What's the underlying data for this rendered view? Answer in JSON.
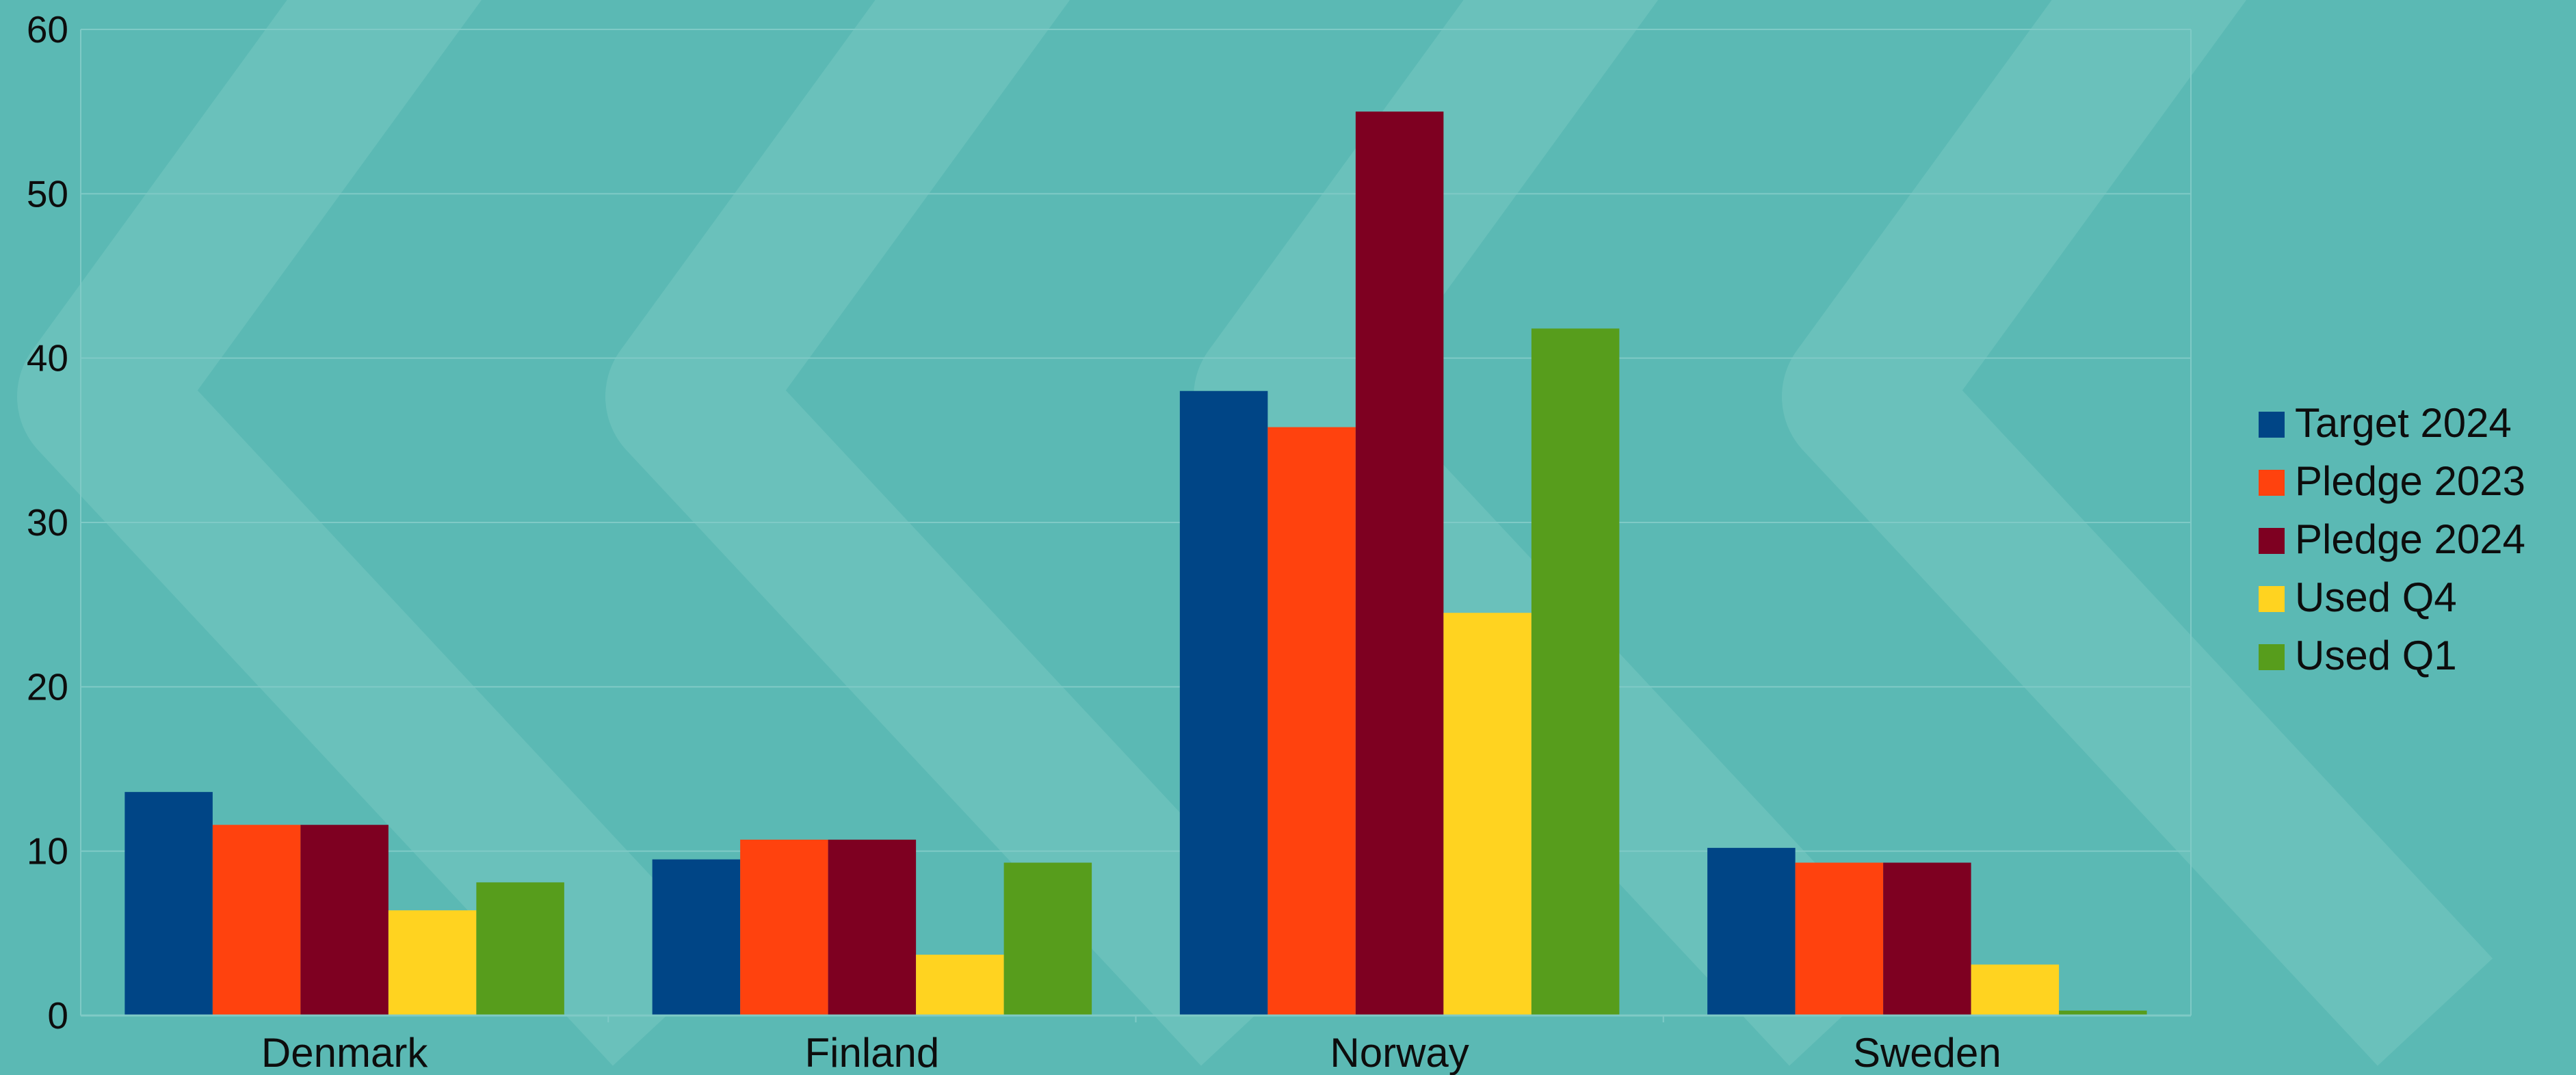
{
  "chart_data": {
    "type": "bar",
    "title": "",
    "xlabel": "",
    "ylabel": "",
    "ylim": [
      0,
      60
    ],
    "yticks": [
      0,
      10,
      20,
      30,
      40,
      50,
      60
    ],
    "grid": true,
    "legend_position": "right",
    "categories": [
      "Denmark",
      "Finland",
      "Norway",
      "Sweden"
    ],
    "series": [
      {
        "name": "Target 2024",
        "color": "#004586",
        "values": [
          13.6,
          9.5,
          38.0,
          10.2
        ]
      },
      {
        "name": "Pledge 2023",
        "color": "#ff420e",
        "values": [
          11.6,
          10.7,
          35.8,
          9.3
        ]
      },
      {
        "name": "Pledge 2024",
        "color": "#7e0021",
        "values": [
          11.6,
          10.7,
          55.0,
          9.3
        ]
      },
      {
        "name": "Used Q4",
        "color": "#ffd320",
        "values": [
          6.4,
          3.7,
          24.5,
          3.1
        ]
      },
      {
        "name": "Used Q1",
        "color": "#579d1c",
        "values": [
          8.1,
          9.3,
          41.8,
          0.3
        ]
      }
    ]
  },
  "colors": {
    "background": "#5bb9b4",
    "grid": "#7fcac6"
  }
}
